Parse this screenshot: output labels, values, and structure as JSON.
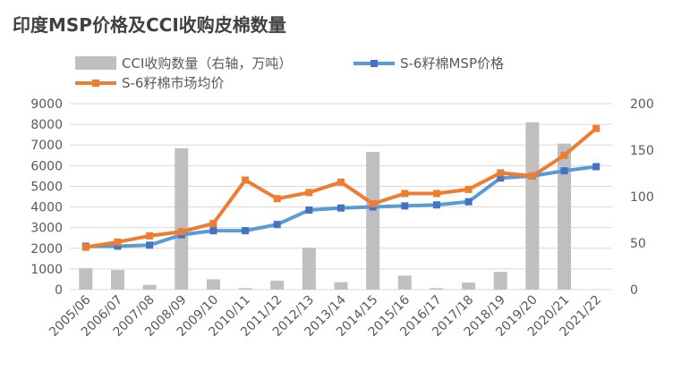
{
  "chart_data": {
    "type": "bar+line",
    "title": "印度MSP价格及CCI收购皮棉数量",
    "categories": [
      "2005/06",
      "2006/07",
      "2007/08",
      "2008/09",
      "2009/10",
      "2010/11",
      "2011/12",
      "2012/13",
      "2013/14",
      "2014/15",
      "2015/16",
      "2016/17",
      "2017/18",
      "2018/19",
      "2019/20",
      "2020/21",
      "2021/22"
    ],
    "y_left": {
      "min": 0,
      "max": 9000,
      "step": 1000,
      "ticks": [
        "0",
        "1000",
        "2000",
        "3000",
        "4000",
        "5000",
        "6000",
        "7000",
        "8000",
        "9000"
      ]
    },
    "y_right": {
      "min": 0,
      "max": 200,
      "step": 50,
      "ticks": [
        "0",
        "50",
        "100",
        "150",
        "200"
      ]
    },
    "legend_placement": "top",
    "grid": true,
    "series": [
      {
        "name": "CCI收购数量（右轴，万吨）",
        "type": "bar",
        "axis": "right",
        "color": "#BFBFBF",
        "values": [
          23,
          21,
          5,
          152,
          11,
          1.5,
          9.5,
          45,
          8,
          148,
          15,
          1.5,
          7.5,
          19,
          180,
          157,
          0
        ]
      },
      {
        "name": "S-6籽棉MSP价格",
        "type": "line",
        "axis": "left",
        "color": "#5B9BD5",
        "values": [
          2100,
          2100,
          2150,
          2650,
          2850,
          2850,
          3150,
          3850,
          3950,
          4000,
          4050,
          4100,
          4250,
          5400,
          5500,
          5750,
          5950
        ]
      },
      {
        "name": "S-6籽棉市场均价",
        "type": "line",
        "axis": "left",
        "color": "#ED7D31",
        "values": [
          2050,
          2300,
          2600,
          2800,
          3200,
          5300,
          4400,
          4700,
          5200,
          4150,
          4650,
          4650,
          4850,
          5650,
          5500,
          6500,
          7800
        ]
      }
    ]
  }
}
